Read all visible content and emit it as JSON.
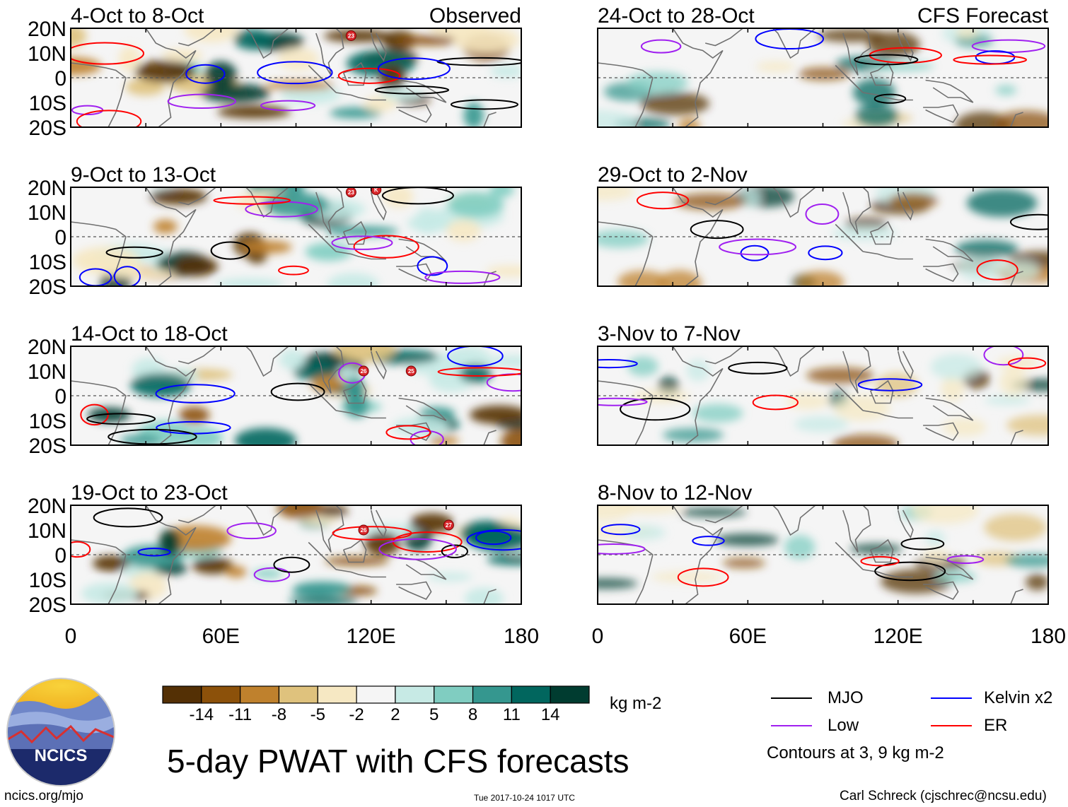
{
  "chart_data": {
    "type": "heatmap",
    "title": "5-day PWAT with CFS forecasts",
    "variable": "PWAT anomaly",
    "units": "kg m-2",
    "x_ticks": [
      "0",
      "60E",
      "120E",
      "180"
    ],
    "y_ticks": [
      "20N",
      "10N",
      "0",
      "10S",
      "20S"
    ],
    "lon_range": [
      0,
      180
    ],
    "lat_range": [
      -20,
      20
    ],
    "panels": [
      {
        "id": "p1",
        "label": "4-Oct to 8-Oct",
        "tag": "Observed",
        "storms": [
          {
            "lon": 112,
            "lat": 17,
            "name": "23"
          }
        ]
      },
      {
        "id": "p2",
        "label": "9-Oct to 13-Oct",
        "tag": "",
        "storms": [
          {
            "lon": 112,
            "lat": 18,
            "name": "23"
          },
          {
            "lon": 122,
            "lat": 19,
            "name": "K"
          }
        ]
      },
      {
        "id": "p3",
        "label": "14-Oct to 18-Oct",
        "tag": "",
        "storms": [
          {
            "lon": 117,
            "lat": 10,
            "name": "26"
          },
          {
            "lon": 136,
            "lat": 10,
            "name": "25"
          }
        ]
      },
      {
        "id": "p4",
        "label": "19-Oct to 23-Oct",
        "tag": "",
        "storms": [
          {
            "lon": 117,
            "lat": 10,
            "name": "26"
          },
          {
            "lon": 151,
            "lat": 12,
            "name": "27"
          }
        ]
      },
      {
        "id": "p5",
        "label": "24-Oct to 28-Oct",
        "tag": "CFS Forecast",
        "storms": []
      },
      {
        "id": "p6",
        "label": "29-Oct to 2-Nov",
        "tag": "",
        "storms": []
      },
      {
        "id": "p7",
        "label": "3-Nov to 7-Nov",
        "tag": "",
        "storms": []
      },
      {
        "id": "p8",
        "label": "8-Nov to 12-Nov",
        "tag": "",
        "storms": []
      }
    ],
    "colorbar": {
      "colors": [
        "#543005",
        "#8c510a",
        "#bf812d",
        "#dfc27d",
        "#f6e8c3",
        "#f5f5f5",
        "#c7eae5",
        "#80cdc1",
        "#35978f",
        "#01665e",
        "#003c30"
      ],
      "ticks": [
        "-14",
        "-11",
        "-8",
        "-5",
        "-2",
        "2",
        "5",
        "8",
        "11",
        "14"
      ]
    },
    "contour_legend": [
      {
        "name": "MJO",
        "color": "#000000"
      },
      {
        "name": "Kelvin x2",
        "color": "#0000ff"
      },
      {
        "name": "Low",
        "color": "#a020f0"
      },
      {
        "name": "ER",
        "color": "#ff0000"
      }
    ],
    "contour_note": "Contours at 3, 9 kg m-2"
  },
  "footer": {
    "logo_text": "NCICS",
    "url": "ncics.org/mjo",
    "timestamp": "Tue 2017-10-24 1017 UTC",
    "credit": "Carl Schreck (cjschrec@ncsu.edu)"
  }
}
